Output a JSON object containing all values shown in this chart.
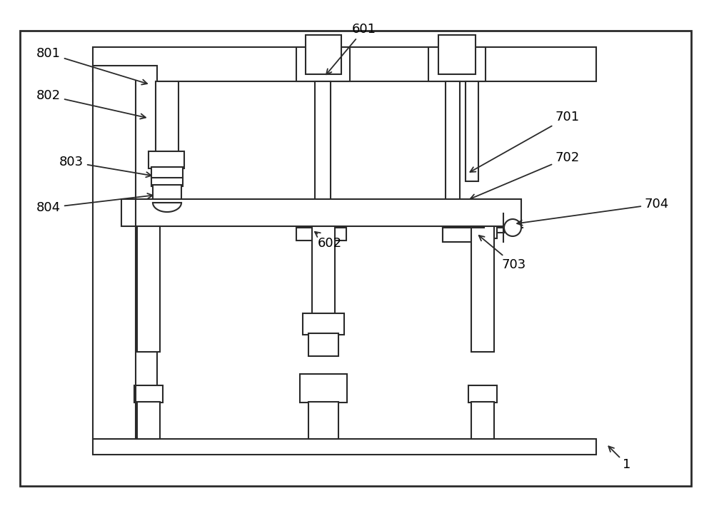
{
  "bg": "#ffffff",
  "lc": "#2a2a2a",
  "lw": 1.5,
  "fig_w": 10.0,
  "fig_h": 7.09,
  "dpi": 100,
  "annotations": [
    [
      "801",
      68,
      634,
      212,
      590
    ],
    [
      "802",
      68,
      575,
      210,
      543
    ],
    [
      "803",
      100,
      482,
      218,
      462
    ],
    [
      "804",
      68,
      418,
      220,
      436
    ],
    [
      "601",
      510,
      668,
      453,
      600
    ],
    [
      "602",
      462,
      368,
      436,
      388
    ],
    [
      "701",
      795,
      545,
      653,
      465
    ],
    [
      "702",
      795,
      488,
      653,
      428
    ],
    [
      "703",
      720,
      338,
      666,
      383
    ],
    [
      "704",
      920,
      423,
      718,
      395
    ],
    [
      "1",
      878,
      58,
      848,
      88
    ]
  ]
}
